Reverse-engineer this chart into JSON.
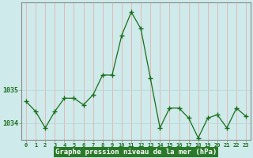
{
  "x": [
    0,
    1,
    2,
    3,
    4,
    5,
    6,
    7,
    8,
    9,
    10,
    11,
    12,
    13,
    14,
    15,
    16,
    17,
    18,
    19,
    20,
    21,
    22,
    23
  ],
  "y": [
    1034.65,
    1034.35,
    1033.85,
    1034.35,
    1034.75,
    1034.75,
    1034.55,
    1034.85,
    1035.45,
    1035.45,
    1036.65,
    1037.35,
    1036.85,
    1035.35,
    1033.85,
    1034.45,
    1034.45,
    1034.15,
    1033.55,
    1034.15,
    1034.25,
    1033.85,
    1034.45,
    1034.2
  ],
  "ylim": [
    1033.5,
    1037.65
  ],
  "yticks": [
    1034,
    1035
  ],
  "xlabel": "Graphe pression niveau de la mer (hPa)",
  "line_color": "#1a6e1a",
  "marker_color": "#1a6e1a",
  "bg_color": "#ceeaea",
  "vgrid_color": "#e8b0b0",
  "hgrid_color": "#b8d8d8",
  "border_color": "#888888",
  "tick_color": "#1a6e1a",
  "xlabel_color": "#ffffff",
  "xlabel_bg": "#2a7a2a",
  "figsize": [
    3.2,
    2.0
  ],
  "dpi": 100
}
